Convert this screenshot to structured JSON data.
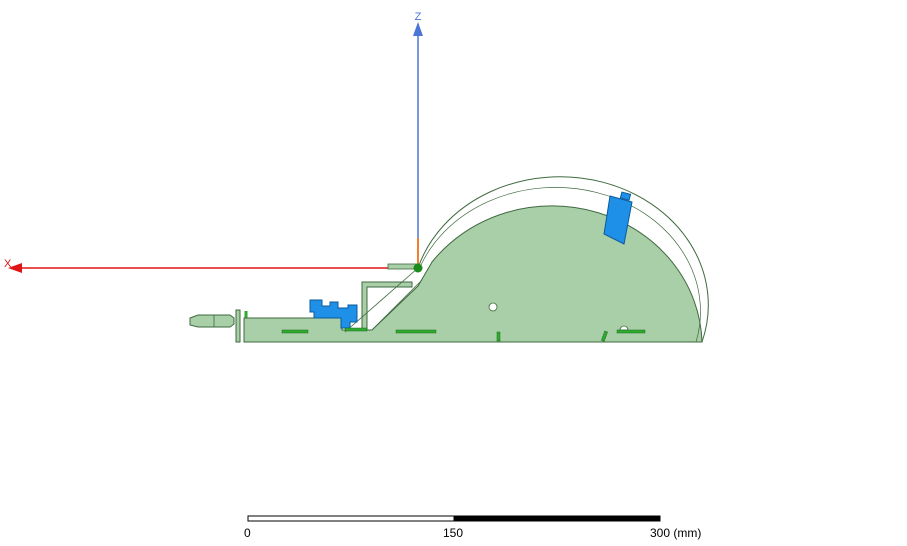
{
  "axes": {
    "z_label": "Z",
    "x_label": "X",
    "z_color": "#4a76d8",
    "x_color": "#e01414",
    "origin_color": "#1c8a1c"
  },
  "model": {
    "body_fill": "#a9cfa9",
    "body_stroke": "#3f6a3f",
    "accent_fill": "#1e90e8",
    "detail_color": "#2eaa2e"
  },
  "scale_bar": {
    "tick_0": "0",
    "tick_mid": "150",
    "tick_end": "300 (mm)"
  }
}
